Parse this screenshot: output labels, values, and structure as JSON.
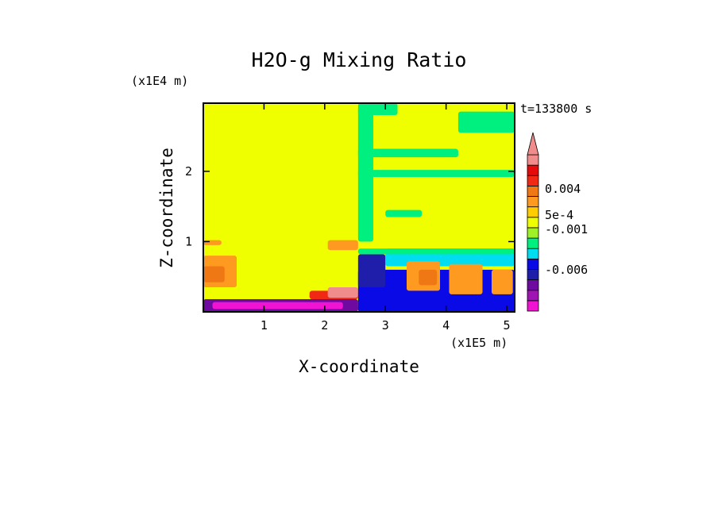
{
  "chart_data": {
    "type": "heatmap",
    "title": "H2O-g Mixing Ratio",
    "xlabel": "X-coordinate",
    "ylabel": "Z-coordinate",
    "x_unit": "(x1E5 m)",
    "y_unit": "(x1E4 m)",
    "time_label": "t=133800 s",
    "xlim": [
      0,
      5.13
    ],
    "ylim": [
      0,
      2.97
    ],
    "x_ticks": [
      {
        "value": 1,
        "label": "1"
      },
      {
        "value": 2,
        "label": "2"
      },
      {
        "value": 3,
        "label": "3"
      },
      {
        "value": 4,
        "label": "4"
      },
      {
        "value": 5,
        "label": "5"
      }
    ],
    "y_ticks": [
      {
        "value": 1,
        "label": "1"
      },
      {
        "value": 2,
        "label": "2"
      }
    ],
    "colorbar": {
      "colors": [
        "#f014d2",
        "#a014b4",
        "#6e0aa0",
        "#1e1eaa",
        "#0a0ae6",
        "#00dcf0",
        "#00f080",
        "#a0f028",
        "#f0ff00",
        "#ffcc00",
        "#ff9a20",
        "#f07814",
        "#f02814",
        "#e60a0a",
        "#f08c8c"
      ],
      "labels": [
        "-0.006",
        "-0.001",
        "5e-4",
        "0.004"
      ],
      "extend": "max",
      "extend_color": "#f08c8c"
    },
    "regions": [
      {
        "color": "#f0ff00",
        "x": [
          0,
          5.13
        ],
        "y": [
          0,
          2.97
        ]
      },
      {
        "color": "#ff9a20",
        "x": [
          0,
          0.3
        ],
        "y": [
          0.95,
          1.02
        ]
      },
      {
        "color": "#ff9a20",
        "x": [
          0,
          0.55
        ],
        "y": [
          0.35,
          0.8
        ]
      },
      {
        "color": "#f07814",
        "x": [
          0,
          0.35
        ],
        "y": [
          0.42,
          0.65
        ]
      },
      {
        "color": "#ff9a20",
        "x": [
          2.05,
          2.55
        ],
        "y": [
          0.88,
          1.02
        ]
      },
      {
        "color": "#f02814",
        "x": [
          1.75,
          2.55
        ],
        "y": [
          0.18,
          0.3
        ]
      },
      {
        "color": "#f08c8c",
        "x": [
          2.05,
          2.55
        ],
        "y": [
          0.2,
          0.35
        ]
      },
      {
        "color": "#6e0aa0",
        "x": [
          0,
          2.55
        ],
        "y": [
          0,
          0.18
        ]
      },
      {
        "color": "#f014d2",
        "x": [
          0.15,
          2.3
        ],
        "y": [
          0.04,
          0.14
        ]
      },
      {
        "color": "#0a0ae6",
        "x": [
          2.55,
          5.13
        ],
        "y": [
          0,
          0.6
        ]
      },
      {
        "color": "#1e1eaa",
        "x": [
          2.55,
          3.0
        ],
        "y": [
          0.35,
          0.82
        ]
      },
      {
        "color": "#00dcf0",
        "x": [
          3.0,
          5.13
        ],
        "y": [
          0.65,
          0.9
        ]
      },
      {
        "color": "#00f080",
        "x": [
          2.55,
          5.13
        ],
        "y": [
          0.82,
          0.9
        ]
      },
      {
        "color": "#ff9a20",
        "x": [
          3.35,
          3.9
        ],
        "y": [
          0.3,
          0.72
        ]
      },
      {
        "color": "#ff9a20",
        "x": [
          4.05,
          4.6
        ],
        "y": [
          0.25,
          0.68
        ]
      },
      {
        "color": "#ff9a20",
        "x": [
          4.75,
          5.1
        ],
        "y": [
          0.25,
          0.6
        ]
      },
      {
        "color": "#f07814",
        "x": [
          3.55,
          3.85
        ],
        "y": [
          0.38,
          0.6
        ]
      },
      {
        "color": "#0a0ae6",
        "x": [
          2.55,
          5.13
        ],
        "y": [
          0,
          0.12
        ]
      },
      {
        "color": "#00f080",
        "x": [
          2.55,
          2.8
        ],
        "y": [
          1.0,
          2.9
        ]
      },
      {
        "color": "#00f080",
        "x": [
          2.55,
          4.2
        ],
        "y": [
          2.2,
          2.32
        ]
      },
      {
        "color": "#00f080",
        "x": [
          2.55,
          5.13
        ],
        "y": [
          1.92,
          2.02
        ]
      },
      {
        "color": "#00f080",
        "x": [
          4.2,
          5.13
        ],
        "y": [
          2.55,
          2.85
        ]
      },
      {
        "color": "#00f080",
        "x": [
          2.55,
          3.2
        ],
        "y": [
          2.8,
          2.97
        ]
      },
      {
        "color": "#00f080",
        "x": [
          3.0,
          3.6
        ],
        "y": [
          1.35,
          1.45
        ]
      }
    ]
  }
}
